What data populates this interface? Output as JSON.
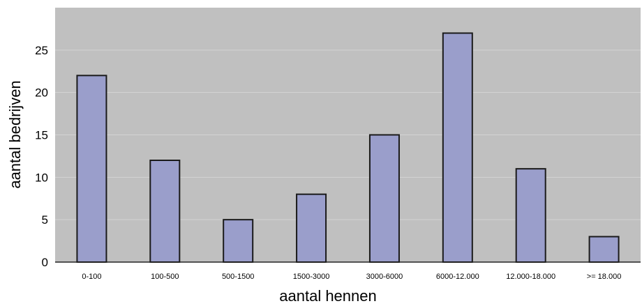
{
  "chart_data": {
    "type": "bar",
    "title": "",
    "xlabel": "aantal hennen",
    "ylabel": "aantal bedrijven",
    "categories": [
      "0-100",
      "100-500",
      "500-1500",
      "1500-3000",
      "3000-6000",
      "6000-12.000",
      "12.000-18.000",
      ">= 18.000"
    ],
    "values": [
      22,
      12,
      5,
      8,
      15,
      27,
      11,
      3
    ],
    "ylim": [
      0,
      30
    ],
    "yticks": [
      0,
      5,
      10,
      15,
      20,
      25
    ],
    "ytick_labels": [
      "0",
      "5",
      "10",
      "15",
      "20",
      "25"
    ],
    "grid": true,
    "legend": "none",
    "colors": {
      "plot_background": "#c0c0c0",
      "bar_fill": "#9a9ecb",
      "bar_stroke": "#1a1a1a",
      "gridline": "#d4d4d4"
    }
  }
}
